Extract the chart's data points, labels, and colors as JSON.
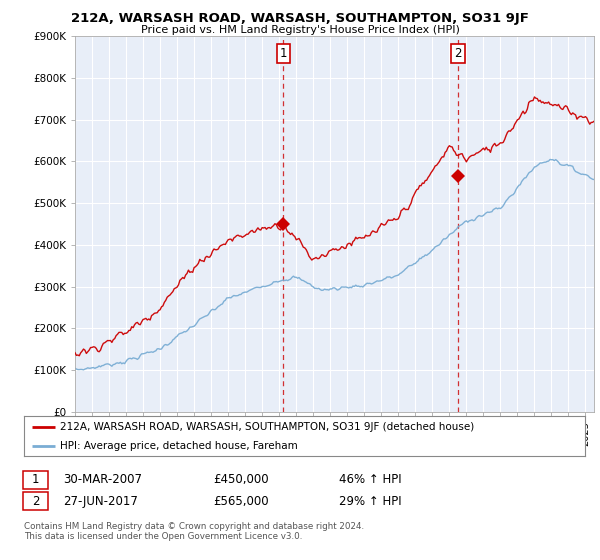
{
  "title": "212A, WARSASH ROAD, WARSASH, SOUTHAMPTON, SO31 9JF",
  "subtitle": "Price paid vs. HM Land Registry's House Price Index (HPI)",
  "ylim": [
    0,
    900000
  ],
  "xlim_start": 1995.0,
  "xlim_end": 2025.5,
  "sale1_x": 2007.25,
  "sale1_y": 450000,
  "sale2_x": 2017.5,
  "sale2_y": 565000,
  "red_line_color": "#cc0000",
  "blue_line_color": "#7aadd4",
  "vline_color": "#cc0000",
  "legend_entry1": "212A, WARSASH ROAD, WARSASH, SOUTHAMPTON, SO31 9JF (detached house)",
  "legend_entry2": "HPI: Average price, detached house, Fareham",
  "table_row1": [
    "1",
    "30-MAR-2007",
    "£450,000",
    "46% ↑ HPI"
  ],
  "table_row2": [
    "2",
    "27-JUN-2017",
    "£565,000",
    "29% ↑ HPI"
  ],
  "footnote": "Contains HM Land Registry data © Crown copyright and database right 2024.\nThis data is licensed under the Open Government Licence v3.0.",
  "background_color": "#ffffff",
  "plot_bg_color": "#e8eef8"
}
